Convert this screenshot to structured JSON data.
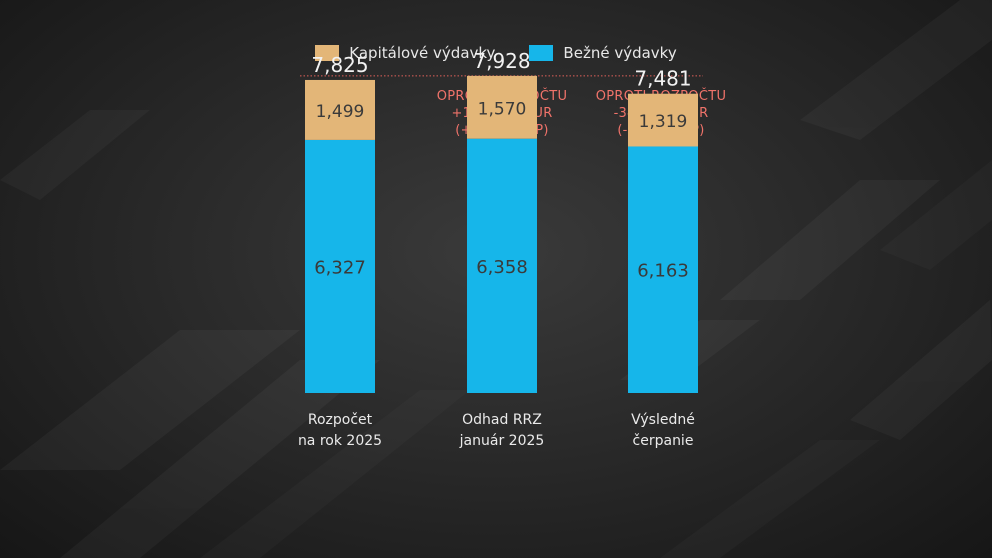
{
  "chart_data": {
    "type": "bar",
    "stacked": true,
    "categories": [
      [
        "Rozpočet",
        "na rok 2025"
      ],
      [
        "Odhad RRZ",
        "január 2025"
      ],
      [
        "Výsledné",
        "čerpanie"
      ]
    ],
    "series": [
      {
        "name": "Bežné výdavky",
        "values": [
          6327,
          6358,
          6163
        ],
        "labels": [
          "6,327",
          "6,358",
          "6,163"
        ],
        "color": "#16b6ea"
      },
      {
        "name": "Kapitálové výdavky",
        "values": [
          1499,
          1570,
          1319
        ],
        "labels": [
          "1,499",
          "1,570",
          "1,319"
        ],
        "color": "#e3b678"
      }
    ],
    "totals": [
      7826,
      7928,
      7482
    ],
    "total_labels": [
      "7,825",
      "7,928",
      "7,481"
    ],
    "annotations": [
      {
        "category_index": 1,
        "lines": [
          "OPROTI ROZPOČTU",
          "+103 MIL. EUR",
          "(+0,1 % HDP)"
        ]
      },
      {
        "category_index": 2,
        "lines": [
          "OPROTI ROZPOČTU",
          "-344 MIL. EUR",
          "(-0,3 % HDP)"
        ]
      }
    ],
    "reference_line": {
      "value": 7928,
      "style": "dotted",
      "color": "#e0605a"
    },
    "legend": {
      "position": "top-center",
      "items": [
        {
          "name": "Kapitálové výdavky",
          "color": "#e3b678"
        },
        {
          "name": "Bežné výdavky",
          "color": "#16b6ea"
        }
      ]
    },
    "ylim": [
      0,
      8000
    ],
    "grid": false,
    "title": "",
    "xlabel": "",
    "ylabel": ""
  }
}
